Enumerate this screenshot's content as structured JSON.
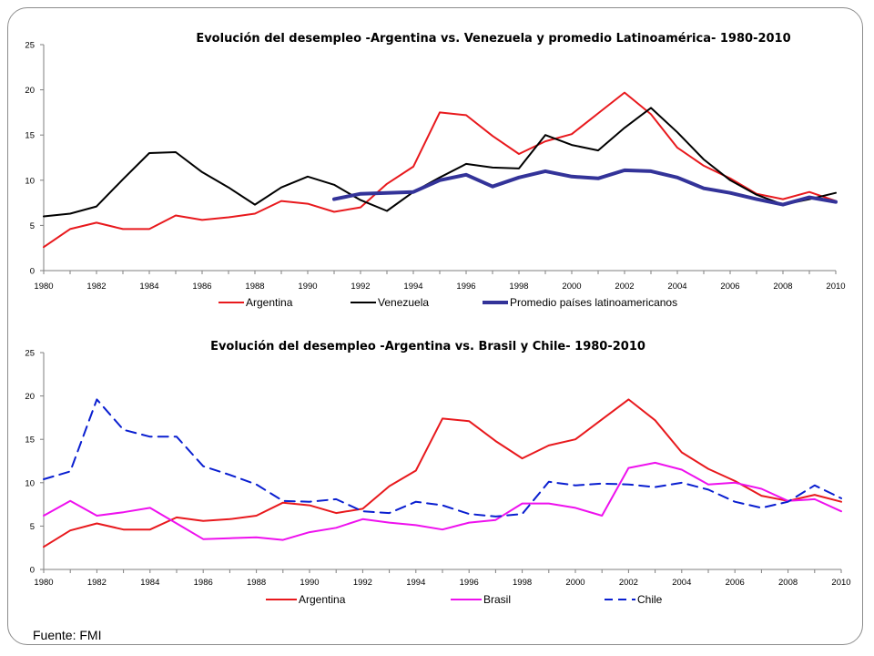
{
  "source_note": "Fuente: FMI",
  "colors": {
    "argentina": "#e8191d",
    "venezuela": "#000000",
    "promedio": "#333399",
    "brasil": "#ee11ee",
    "chile": "#0a1fd0",
    "axis": "#7f7f7f"
  },
  "chart_data": [
    {
      "type": "line",
      "title": "Evolución del desempleo -Argentina vs. Venezuela y promedio Latinoamérica- 1980-2010",
      "xlabel": "",
      "ylabel": "",
      "ylim": [
        0,
        25
      ],
      "yticks": [
        "0",
        "5",
        "10",
        "15",
        "20",
        "25"
      ],
      "xticks": [
        "1980",
        "1982",
        "1984",
        "1986",
        "1988",
        "1990",
        "1992",
        "1994",
        "1996",
        "1998",
        "2000",
        "2002",
        "2004",
        "2006",
        "2008",
        "2010"
      ],
      "grid": false,
      "legend_position": "bottom",
      "x": [
        1980,
        1981,
        1982,
        1983,
        1984,
        1985,
        1986,
        1987,
        1988,
        1989,
        1990,
        1991,
        1992,
        1993,
        1994,
        1995,
        1996,
        1997,
        1998,
        1999,
        2000,
        2001,
        2002,
        2003,
        2004,
        2005,
        2006,
        2007,
        2008,
        2009,
        2010
      ],
      "series": [
        {
          "name": "Argentina",
          "color_key": "argentina",
          "style": "solid",
          "values": [
            2.6,
            4.6,
            5.3,
            4.6,
            4.6,
            6.1,
            5.6,
            5.9,
            6.3,
            7.7,
            7.4,
            6.5,
            7.0,
            9.6,
            11.5,
            17.5,
            17.2,
            14.9,
            12.9,
            14.3,
            15.1,
            17.4,
            19.7,
            17.3,
            13.6,
            11.6,
            10.2,
            8.5,
            7.9,
            8.7,
            7.7
          ]
        },
        {
          "name": "Venezuela",
          "color_key": "venezuela",
          "style": "solid",
          "values": [
            6.0,
            6.3,
            7.1,
            10.1,
            13.0,
            13.1,
            10.9,
            9.2,
            7.3,
            9.2,
            10.4,
            9.5,
            7.8,
            6.6,
            8.7,
            10.3,
            11.8,
            11.4,
            11.3,
            15.0,
            13.9,
            13.3,
            15.8,
            18.0,
            15.3,
            12.3,
            10.0,
            8.4,
            7.3,
            7.9,
            8.6
          ]
        },
        {
          "name": "Promedio países latinoamericanos",
          "color_key": "promedio",
          "style": "thick",
          "values": [
            null,
            null,
            null,
            null,
            null,
            null,
            null,
            null,
            null,
            null,
            null,
            7.9,
            8.5,
            8.6,
            8.7,
            10.0,
            10.6,
            9.3,
            10.3,
            11.0,
            10.4,
            10.2,
            11.1,
            11.0,
            10.3,
            9.1,
            8.6,
            7.9,
            7.3,
            8.1,
            7.6
          ]
        }
      ]
    },
    {
      "type": "line",
      "title": "Evolución del desempleo -Argentina vs. Brasil y Chile- 1980-2010",
      "xlabel": "",
      "ylabel": "",
      "ylim": [
        0,
        25
      ],
      "yticks": [
        "0",
        "5",
        "10",
        "15",
        "20",
        "25"
      ],
      "xticks": [
        "1980",
        "1982",
        "1984",
        "1986",
        "1988",
        "1990",
        "1992",
        "1994",
        "1996",
        "1998",
        "2000",
        "2002",
        "2004",
        "2006",
        "2008",
        "2010"
      ],
      "grid": false,
      "legend_position": "bottom",
      "x": [
        1980,
        1981,
        1982,
        1983,
        1984,
        1985,
        1986,
        1987,
        1988,
        1989,
        1990,
        1991,
        1992,
        1993,
        1994,
        1995,
        1996,
        1997,
        1998,
        1999,
        2000,
        2001,
        2002,
        2003,
        2004,
        2005,
        2006,
        2007,
        2008,
        2009,
        2010
      ],
      "series": [
        {
          "name": "Argentina",
          "color_key": "argentina",
          "style": "solid",
          "values": [
            2.6,
            4.5,
            5.3,
            4.6,
            4.6,
            6.0,
            5.6,
            5.8,
            6.2,
            7.7,
            7.4,
            6.5,
            7.0,
            9.6,
            11.4,
            17.4,
            17.1,
            14.8,
            12.8,
            14.3,
            15.0,
            17.3,
            19.6,
            17.2,
            13.5,
            11.6,
            10.2,
            8.5,
            7.9,
            8.6,
            7.8
          ]
        },
        {
          "name": "Brasil",
          "color_key": "brasil",
          "style": "solid",
          "values": [
            6.2,
            7.9,
            6.2,
            6.6,
            7.1,
            5.3,
            3.5,
            3.6,
            3.7,
            3.4,
            4.3,
            4.8,
            5.8,
            5.4,
            5.1,
            4.6,
            5.4,
            5.7,
            7.6,
            7.6,
            7.1,
            6.2,
            11.7,
            12.3,
            11.5,
            9.8,
            10.0,
            9.3,
            7.9,
            8.1,
            6.7
          ]
        },
        {
          "name": "Chile",
          "color_key": "chile",
          "style": "dashed",
          "values": [
            10.4,
            11.3,
            19.6,
            16.1,
            15.3,
            15.3,
            11.9,
            10.9,
            9.8,
            7.9,
            7.8,
            8.1,
            6.7,
            6.5,
            7.8,
            7.4,
            6.4,
            6.1,
            6.4,
            10.1,
            9.7,
            9.9,
            9.8,
            9.5,
            10.0,
            9.2,
            7.8,
            7.1,
            7.8,
            9.7,
            8.2
          ]
        }
      ]
    }
  ]
}
